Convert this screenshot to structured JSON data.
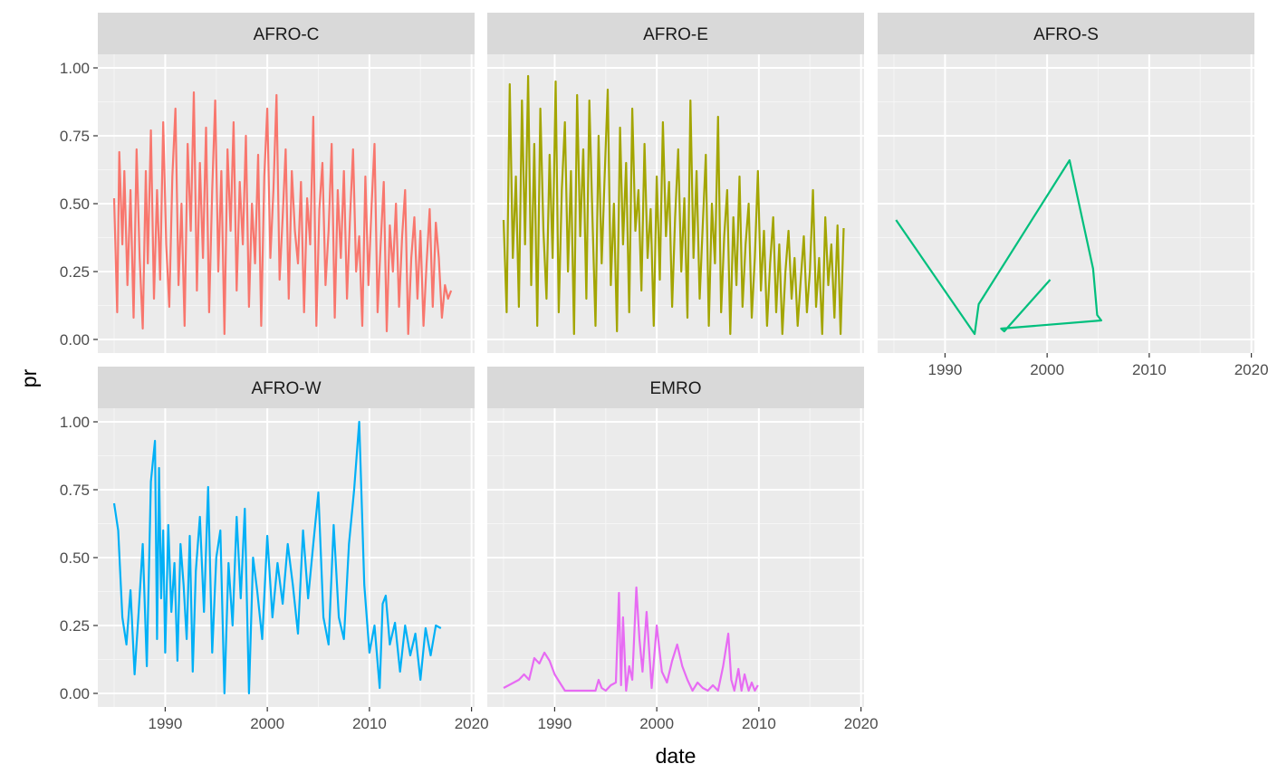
{
  "chart_data": {
    "type": "line",
    "xlabel": "date",
    "ylabel": "pr",
    "xlim": [
      1983.4,
      2020.3
    ],
    "ylim": [
      -0.05,
      1.05
    ],
    "x_ticks": [
      1990,
      2000,
      2010,
      2020
    ],
    "x_tick_labels": [
      "1990",
      "2000",
      "2010",
      "2020"
    ],
    "y_ticks": [
      0,
      0.25,
      0.5,
      0.75,
      1.0
    ],
    "y_tick_labels": [
      "0.00",
      "0.25",
      "0.50",
      "0.75",
      "1.00"
    ],
    "grid": true,
    "legend": "none",
    "series": [
      {
        "name": "AFRO-C",
        "color": "#F8766D",
        "x": [
          1985.0,
          1985.3,
          1985.5,
          1985.8,
          1986.0,
          1986.3,
          1986.6,
          1986.9,
          1987.2,
          1987.5,
          1987.8,
          1988.1,
          1988.3,
          1988.6,
          1988.9,
          1989.2,
          1989.5,
          1989.8,
          1990.1,
          1990.4,
          1990.7,
          1991.0,
          1991.3,
          1991.6,
          1991.9,
          1992.2,
          1992.5,
          1992.8,
          1993.1,
          1993.4,
          1993.7,
          1994.0,
          1994.3,
          1994.6,
          1994.9,
          1995.2,
          1995.5,
          1995.8,
          1996.1,
          1996.4,
          1996.7,
          1997.0,
          1997.3,
          1997.6,
          1997.9,
          1998.2,
          1998.5,
          1998.8,
          1999.1,
          1999.4,
          1999.7,
          2000.0,
          2000.3,
          2000.6,
          2000.9,
          2001.2,
          2001.5,
          2001.8,
          2002.1,
          2002.4,
          2002.7,
          2003.0,
          2003.3,
          2003.6,
          2003.9,
          2004.2,
          2004.5,
          2004.8,
          2005.1,
          2005.4,
          2005.7,
          2006.0,
          2006.3,
          2006.6,
          2006.9,
          2007.2,
          2007.5,
          2007.8,
          2008.1,
          2008.4,
          2008.7,
          2009.0,
          2009.3,
          2009.6,
          2009.9,
          2010.2,
          2010.5,
          2010.8,
          2011.1,
          2011.4,
          2011.7,
          2012.0,
          2012.3,
          2012.6,
          2012.9,
          2013.2,
          2013.5,
          2013.8,
          2014.1,
          2014.4,
          2014.7,
          2015.0,
          2015.3,
          2015.6,
          2015.9,
          2016.2,
          2016.5,
          2016.8,
          2017.1,
          2017.4,
          2017.7,
          2018.0
        ],
        "y": [
          0.52,
          0.1,
          0.69,
          0.35,
          0.62,
          0.2,
          0.55,
          0.08,
          0.7,
          0.3,
          0.04,
          0.62,
          0.28,
          0.77,
          0.15,
          0.55,
          0.22,
          0.8,
          0.35,
          0.12,
          0.6,
          0.85,
          0.2,
          0.5,
          0.05,
          0.72,
          0.4,
          0.91,
          0.18,
          0.65,
          0.3,
          0.78,
          0.1,
          0.55,
          0.88,
          0.25,
          0.62,
          0.02,
          0.7,
          0.4,
          0.8,
          0.18,
          0.58,
          0.35,
          0.75,
          0.12,
          0.5,
          0.28,
          0.68,
          0.05,
          0.6,
          0.85,
          0.3,
          0.55,
          0.9,
          0.22,
          0.45,
          0.7,
          0.15,
          0.62,
          0.4,
          0.28,
          0.58,
          0.1,
          0.52,
          0.35,
          0.82,
          0.05,
          0.48,
          0.65,
          0.2,
          0.4,
          0.72,
          0.08,
          0.55,
          0.3,
          0.62,
          0.15,
          0.45,
          0.7,
          0.25,
          0.38,
          0.05,
          0.6,
          0.2,
          0.48,
          0.72,
          0.1,
          0.35,
          0.58,
          0.03,
          0.42,
          0.25,
          0.5,
          0.12,
          0.38,
          0.55,
          0.02,
          0.3,
          0.45,
          0.15,
          0.4,
          0.05,
          0.28,
          0.48,
          0.12,
          0.43,
          0.3,
          0.08,
          0.2,
          0.15,
          0.18
        ]
      },
      {
        "name": "AFRO-E",
        "color": "#A3A500",
        "x": [
          1985.0,
          1985.3,
          1985.6,
          1985.9,
          1986.2,
          1986.5,
          1986.8,
          1987.1,
          1987.4,
          1987.7,
          1988.0,
          1988.3,
          1988.6,
          1988.9,
          1989.2,
          1989.5,
          1989.8,
          1990.1,
          1990.4,
          1990.7,
          1991.0,
          1991.3,
          1991.6,
          1991.9,
          1992.2,
          1992.5,
          1992.8,
          1993.1,
          1993.4,
          1993.7,
          1994.0,
          1994.3,
          1994.6,
          1994.9,
          1995.2,
          1995.5,
          1995.8,
          1996.1,
          1996.4,
          1996.7,
          1997.0,
          1997.3,
          1997.6,
          1997.9,
          1998.2,
          1998.5,
          1998.8,
          1999.1,
          1999.4,
          1999.7,
          2000.0,
          2000.3,
          2000.6,
          2000.9,
          2001.2,
          2001.5,
          2001.8,
          2002.1,
          2002.4,
          2002.7,
          2003.0,
          2003.3,
          2003.6,
          2003.9,
          2004.2,
          2004.5,
          2004.8,
          2005.1,
          2005.4,
          2005.7,
          2006.0,
          2006.3,
          2006.6,
          2006.9,
          2007.2,
          2007.5,
          2007.8,
          2008.1,
          2008.4,
          2008.7,
          2009.0,
          2009.3,
          2009.6,
          2009.9,
          2010.2,
          2010.5,
          2010.8,
          2011.1,
          2011.4,
          2011.7,
          2012.0,
          2012.3,
          2012.6,
          2012.9,
          2013.2,
          2013.5,
          2013.8,
          2014.1,
          2014.4,
          2014.7,
          2015.0,
          2015.3,
          2015.6,
          2015.9,
          2016.2,
          2016.5,
          2016.8,
          2017.1,
          2017.4,
          2017.7,
          2018.0,
          2018.3
        ],
        "y": [
          0.44,
          0.1,
          0.94,
          0.3,
          0.6,
          0.12,
          0.88,
          0.35,
          0.97,
          0.2,
          0.72,
          0.05,
          0.85,
          0.4,
          0.15,
          0.68,
          0.3,
          0.95,
          0.1,
          0.55,
          0.8,
          0.25,
          0.62,
          0.02,
          0.9,
          0.38,
          0.7,
          0.15,
          0.88,
          0.45,
          0.05,
          0.75,
          0.28,
          0.6,
          0.92,
          0.2,
          0.5,
          0.03,
          0.78,
          0.35,
          0.65,
          0.1,
          0.85,
          0.4,
          0.55,
          0.18,
          0.72,
          0.3,
          0.48,
          0.05,
          0.6,
          0.22,
          0.8,
          0.38,
          0.58,
          0.12,
          0.45,
          0.7,
          0.25,
          0.52,
          0.08,
          0.88,
          0.3,
          0.62,
          0.15,
          0.42,
          0.68,
          0.05,
          0.5,
          0.28,
          0.82,
          0.1,
          0.38,
          0.55,
          0.02,
          0.45,
          0.2,
          0.6,
          0.12,
          0.35,
          0.5,
          0.08,
          0.3,
          0.62,
          0.18,
          0.4,
          0.05,
          0.28,
          0.45,
          0.1,
          0.35,
          0.02,
          0.25,
          0.4,
          0.15,
          0.3,
          0.05,
          0.22,
          0.38,
          0.1,
          0.25,
          0.55,
          0.12,
          0.3,
          0.02,
          0.45,
          0.2,
          0.35,
          0.08,
          0.42,
          0.02,
          0.41
        ]
      },
      {
        "name": "AFRO-S",
        "color": "#00BF7D",
        "x": [
          1985.2,
          1992.9,
          1993.3,
          2002.2,
          2004.5,
          2004.9,
          2005.3,
          1995.5,
          1995.8,
          2000.3
        ],
        "y": [
          0.44,
          0.02,
          0.13,
          0.66,
          0.26,
          0.09,
          0.07,
          0.04,
          0.03,
          0.22
        ]
      },
      {
        "name": "AFRO-W",
        "color": "#00B0F6",
        "x": [
          1985.0,
          1985.4,
          1985.8,
          1986.2,
          1986.6,
          1987.0,
          1987.4,
          1987.8,
          1988.2,
          1988.6,
          1989.0,
          1989.2,
          1989.4,
          1989.6,
          1989.8,
          1990.0,
          1990.3,
          1990.6,
          1990.9,
          1991.2,
          1991.5,
          1991.8,
          1992.1,
          1992.4,
          1992.7,
          1993.0,
          1993.4,
          1993.8,
          1994.2,
          1994.6,
          1995.0,
          1995.4,
          1995.8,
          1996.2,
          1996.6,
          1997.0,
          1997.4,
          1997.8,
          1998.2,
          1998.6,
          1999.0,
          1999.5,
          2000.0,
          2000.5,
          2001.0,
          2001.5,
          2002.0,
          2002.5,
          2003.0,
          2003.5,
          2004.0,
          2004.5,
          2005.0,
          2005.5,
          2006.0,
          2006.5,
          2007.0,
          2007.5,
          2008.0,
          2008.5,
          2009.0,
          2009.5,
          2010.0,
          2010.5,
          2011.0,
          2011.3,
          2011.6,
          2012.0,
          2012.5,
          2013.0,
          2013.5,
          2014.0,
          2014.5,
          2015.0,
          2015.5,
          2016.0,
          2016.5,
          2017.0
        ],
        "y": [
          0.7,
          0.6,
          0.28,
          0.18,
          0.38,
          0.07,
          0.3,
          0.55,
          0.1,
          0.78,
          0.93,
          0.2,
          0.83,
          0.35,
          0.6,
          0.15,
          0.62,
          0.3,
          0.48,
          0.12,
          0.55,
          0.4,
          0.2,
          0.58,
          0.08,
          0.45,
          0.65,
          0.3,
          0.76,
          0.15,
          0.5,
          0.6,
          0.0,
          0.48,
          0.25,
          0.65,
          0.35,
          0.68,
          0.0,
          0.5,
          0.38,
          0.2,
          0.58,
          0.28,
          0.48,
          0.33,
          0.55,
          0.4,
          0.22,
          0.6,
          0.35,
          0.55,
          0.74,
          0.28,
          0.18,
          0.62,
          0.28,
          0.2,
          0.55,
          0.75,
          1.0,
          0.4,
          0.15,
          0.25,
          0.02,
          0.33,
          0.36,
          0.18,
          0.26,
          0.08,
          0.25,
          0.14,
          0.22,
          0.05,
          0.24,
          0.14,
          0.25,
          0.24
        ]
      },
      {
        "name": "EMRO",
        "color": "#E76BF3",
        "x": [
          1985.0,
          1985.5,
          1986.0,
          1986.5,
          1987.0,
          1987.5,
          1988.0,
          1988.5,
          1989.0,
          1989.5,
          1990.0,
          1990.5,
          1991.0,
          1992.0,
          1993.0,
          1994.0,
          1994.3,
          1994.6,
          1995.0,
          1995.5,
          1996.0,
          1996.3,
          1996.5,
          1996.7,
          1997.0,
          1997.3,
          1997.6,
          1998.0,
          1998.3,
          1998.6,
          1999.0,
          1999.5,
          2000.0,
          2000.5,
          2001.0,
          2001.5,
          2002.0,
          2002.5,
          2003.0,
          2003.5,
          2004.0,
          2004.5,
          2005.0,
          2005.5,
          2006.0,
          2006.5,
          2007.0,
          2007.3,
          2007.6,
          2008.0,
          2008.3,
          2008.6,
          2009.0,
          2009.3,
          2009.6,
          2009.9
        ],
        "y": [
          0.02,
          0.03,
          0.04,
          0.05,
          0.07,
          0.05,
          0.13,
          0.11,
          0.15,
          0.12,
          0.07,
          0.04,
          0.01,
          0.01,
          0.01,
          0.01,
          0.05,
          0.02,
          0.01,
          0.03,
          0.04,
          0.37,
          0.03,
          0.28,
          0.01,
          0.1,
          0.05,
          0.39,
          0.2,
          0.08,
          0.3,
          0.02,
          0.25,
          0.08,
          0.04,
          0.12,
          0.18,
          0.1,
          0.05,
          0.01,
          0.04,
          0.02,
          0.01,
          0.03,
          0.01,
          0.1,
          0.22,
          0.05,
          0.01,
          0.09,
          0.01,
          0.07,
          0.01,
          0.04,
          0.01,
          0.03
        ]
      }
    ]
  }
}
